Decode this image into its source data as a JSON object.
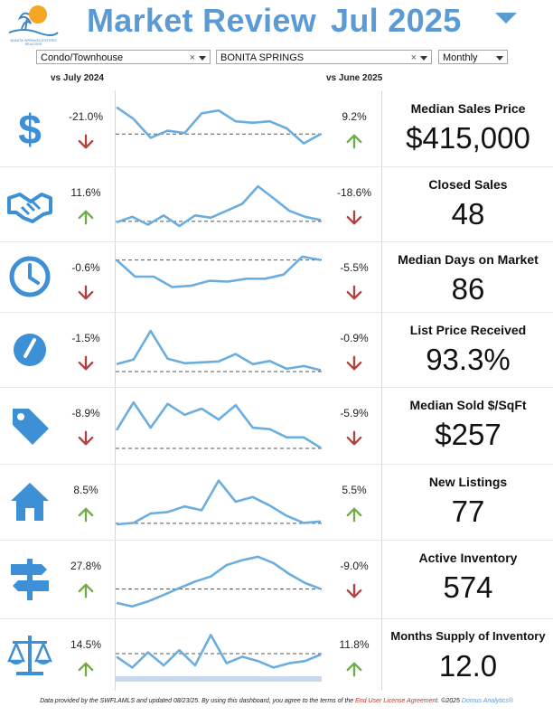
{
  "header": {
    "title": "Market Review",
    "month": "Jul 2025",
    "logo_text": "BONITA SPRINGS-ESTERO REALTORS",
    "accent_color": "#5b9bd5"
  },
  "filters": {
    "property_type": "Condo/Townhouse",
    "area": "BONITA SPRINGS",
    "period": "Monthly"
  },
  "columns": {
    "vs_year": "vs July 2024",
    "vs_month": "vs June 2025"
  },
  "metrics": [
    {
      "label": "Median Sales Price",
      "value": "$415,000",
      "yoy": "-21.0%",
      "yoy_dir": "down",
      "mom": "9.2%",
      "mom_dir": "up",
      "icon": "dollar-icon"
    },
    {
      "label": "Closed Sales",
      "value": "48",
      "yoy": "11.6%",
      "yoy_dir": "up",
      "mom": "-18.6%",
      "mom_dir": "down",
      "icon": "handshake-icon"
    },
    {
      "label": "Median Days on Market",
      "value": "86",
      "yoy": "-0.6%",
      "yoy_dir": "down",
      "mom": "-5.5%",
      "mom_dir": "down",
      "icon": "clock-icon"
    },
    {
      "label": "List Price Received",
      "value": "93.3%",
      "yoy": "-1.5%",
      "yoy_dir": "down",
      "mom": "-0.9%",
      "mom_dir": "down",
      "icon": "gauge-icon"
    },
    {
      "label": "Median Sold $/SqFt",
      "value": "$257",
      "yoy": "-8.9%",
      "yoy_dir": "down",
      "mom": "-5.9%",
      "mom_dir": "down",
      "icon": "price-tag-icon"
    },
    {
      "label": "New Listings",
      "value": "77",
      "yoy": "8.5%",
      "yoy_dir": "up",
      "mom": "5.5%",
      "mom_dir": "up",
      "icon": "house-icon"
    },
    {
      "label": "Active Inventory",
      "value": "574",
      "yoy": "27.8%",
      "yoy_dir": "up",
      "mom": "-9.0%",
      "mom_dir": "down",
      "icon": "signpost-icon"
    },
    {
      "label": "Months Supply of Inventory",
      "value": "12.0",
      "yoy": "14.5%",
      "yoy_dir": "up",
      "mom": "11.8%",
      "mom_dir": "up",
      "icon": "scales-icon"
    }
  ],
  "colors": {
    "up": "#70ad47",
    "down": "#b0413e",
    "spark": "#6aaee0",
    "baseline": "#555555"
  },
  "chart_data": [
    {
      "type": "line",
      "name": "Median Sales Price",
      "values": [
        0.95,
        0.7,
        0.3,
        0.45,
        0.4,
        0.82,
        0.88,
        0.65,
        0.62,
        0.65,
        0.5,
        0.18,
        0.38
      ],
      "baseline": 0.38
    },
    {
      "type": "line",
      "name": "Closed Sales",
      "values": [
        0.1,
        0.22,
        0.05,
        0.25,
        0.02,
        0.25,
        0.2,
        0.35,
        0.5,
        0.88,
        0.62,
        0.35,
        0.22,
        0.15
      ],
      "baseline": 0.12
    },
    {
      "type": "line",
      "name": "Median Days on Market",
      "values": [
        0.9,
        0.5,
        0.5,
        0.25,
        0.28,
        0.4,
        0.38,
        0.45,
        0.45,
        0.55,
        0.98,
        0.9
      ],
      "baseline": 0.9
    },
    {
      "type": "line",
      "name": "List Price Received",
      "values": [
        0.18,
        0.28,
        0.9,
        0.3,
        0.2,
        0.22,
        0.24,
        0.4,
        0.18,
        0.25,
        0.08,
        0.14,
        0.05
      ],
      "baseline": 0.02
    },
    {
      "type": "line",
      "name": "Median Sold $/SqFt",
      "values": [
        0.4,
        0.98,
        0.45,
        0.95,
        0.72,
        0.85,
        0.62,
        0.92,
        0.45,
        0.42,
        0.25,
        0.25,
        0.03
      ],
      "baseline": 0.02
    },
    {
      "type": "line",
      "name": "New Listings",
      "values": [
        0.02,
        0.05,
        0.25,
        0.28,
        0.4,
        0.32,
        0.95,
        0.5,
        0.6,
        0.42,
        0.2,
        0.05,
        0.08
      ],
      "baseline": 0.04
    },
    {
      "type": "line",
      "name": "Active Inventory",
      "values": [
        0.02,
        -0.05,
        0.05,
        0.18,
        0.32,
        0.45,
        0.55,
        0.78,
        0.88,
        0.95,
        0.82,
        0.6,
        0.42,
        0.3
      ],
      "baseline": 0.3
    },
    {
      "type": "line",
      "name": "Months Supply of Inventory",
      "values": [
        0.45,
        0.2,
        0.55,
        0.25,
        0.6,
        0.25,
        0.95,
        0.3,
        0.45,
        0.35,
        0.2,
        0.3,
        0.35,
        0.5
      ],
      "baseline": 0.52
    }
  ],
  "footer": {
    "text1": "Data provided by the SWFLAMLS and updated 08/23/25.  By using this dashboard, you agree to the terms of the ",
    "link": "End User License Agreement.",
    "text2": "  ©2025 ",
    "brand": "Domus Analytics®"
  }
}
